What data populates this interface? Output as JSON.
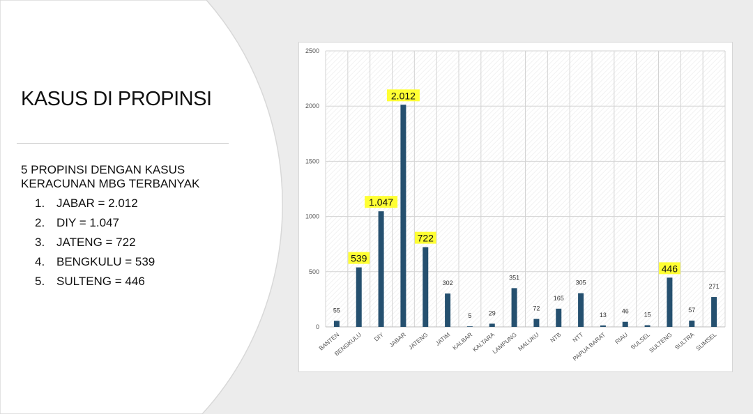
{
  "slide": {
    "title": "KASUS DI PROPINSI",
    "subtitle": "5 PROPINSI DENGAN KASUS KERACUNAN MBG TERBANYAK",
    "top5": [
      {
        "num": "1.",
        "text": "JABAR = 2.012"
      },
      {
        "num": "2.",
        "text": "DIY = 1.047"
      },
      {
        "num": "3.",
        "text": "JATENG = 722"
      },
      {
        "num": "4.",
        "text": "BENGKULU = 539"
      },
      {
        "num": "5.",
        "text": "SULTENG = 446"
      }
    ]
  },
  "colors": {
    "bar": "#25506f",
    "highlight": "#ffff33",
    "gridline": "#d3d3d3",
    "hatch": "#eeeeee",
    "background_arc": "#ffffff"
  },
  "chart_data": {
    "type": "bar",
    "categories": [
      "BANTEN",
      "BENGKULU",
      "DIY",
      "JABAR",
      "JATENG",
      "JATIM",
      "KALBAR",
      "KALTARA",
      "LAMPUNG",
      "MALUKU",
      "NTB",
      "NTT",
      "PAPUA BARAT",
      "RIAU",
      "SULSEL",
      "SULTENG",
      "SULTRA",
      "SUMSEL"
    ],
    "values": [
      55,
      539,
      1047,
      2012,
      722,
      302,
      5,
      29,
      351,
      72,
      165,
      305,
      13,
      46,
      15,
      446,
      57,
      271
    ],
    "data_labels": [
      "55",
      "539",
      "1.047",
      "2.012",
      "722",
      "302",
      "5",
      "29",
      "351",
      "72",
      "165",
      "305",
      "13",
      "46",
      "15",
      "446",
      "57",
      "271"
    ],
    "highlighted": [
      false,
      true,
      true,
      true,
      true,
      false,
      false,
      false,
      false,
      false,
      false,
      false,
      false,
      false,
      false,
      true,
      false,
      false
    ],
    "yticks": [
      0,
      500,
      1000,
      1500,
      2000,
      2500
    ],
    "ylim": [
      0,
      2500
    ],
    "grid": true,
    "title": "",
    "xlabel": "",
    "ylabel": ""
  }
}
